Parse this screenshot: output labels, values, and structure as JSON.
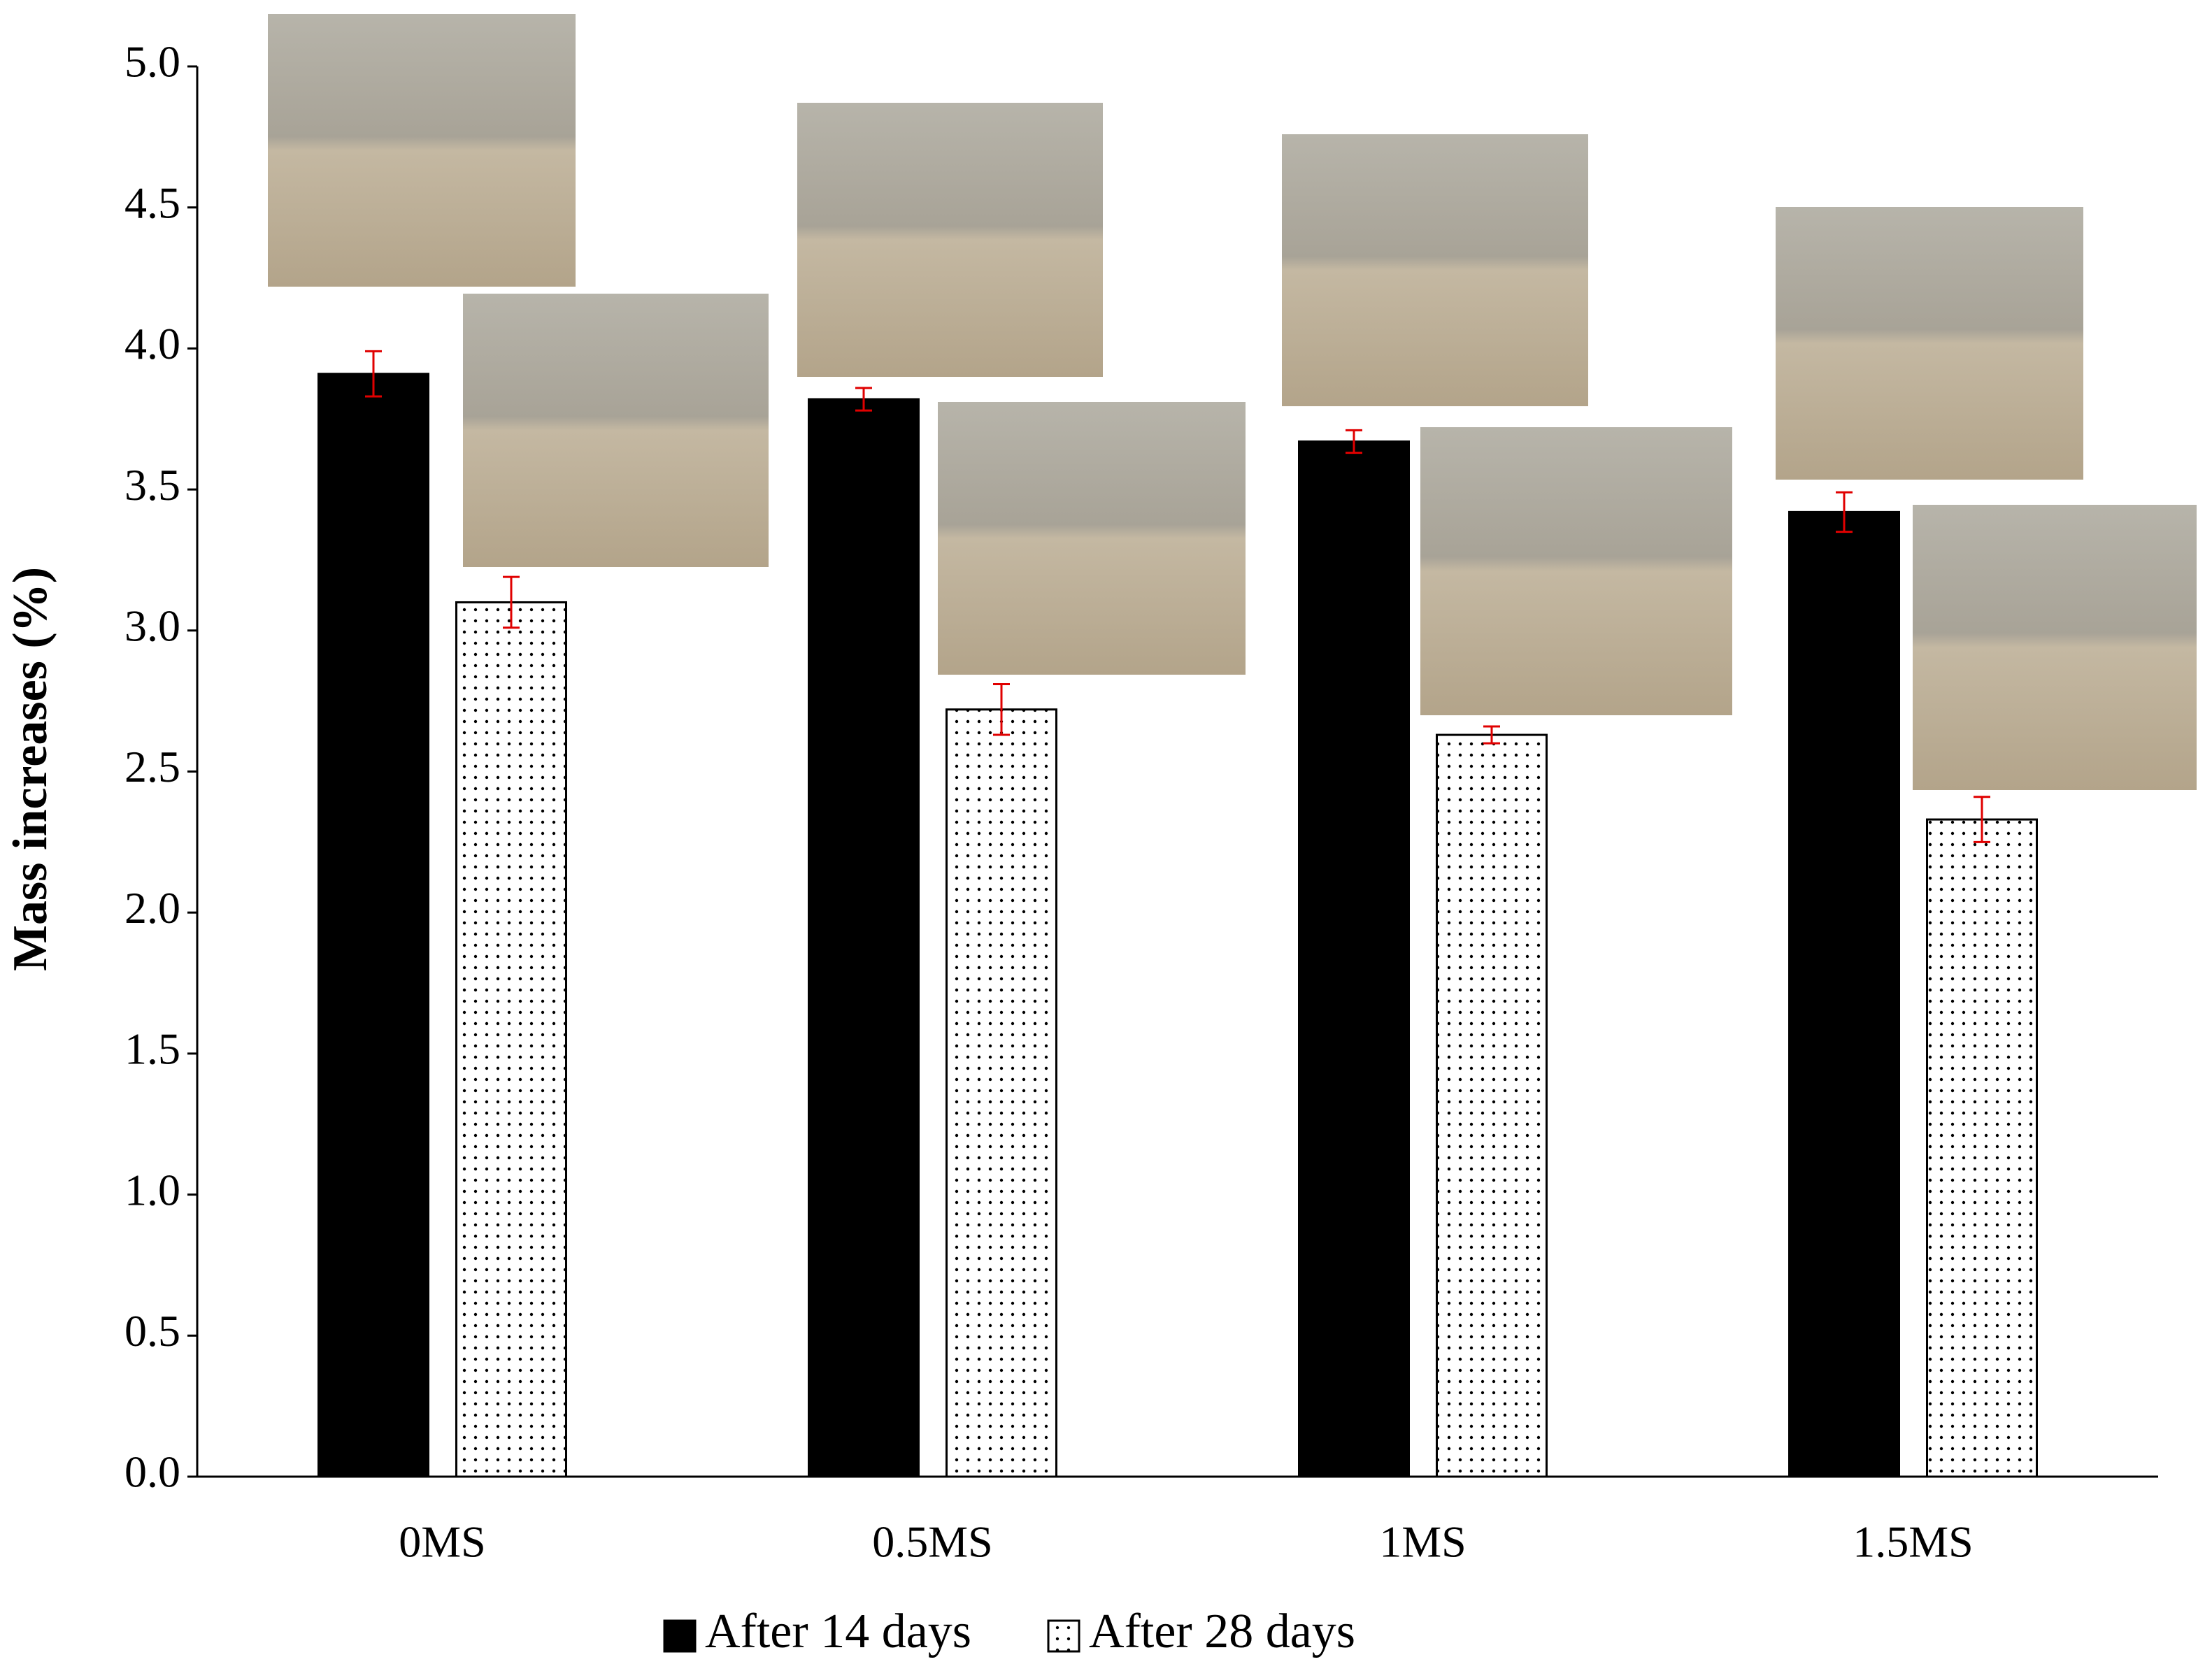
{
  "chart_data": {
    "type": "bar",
    "ylabel": "Mass increases (%)",
    "categories": [
      "0MS",
      "0.5MS",
      "1MS",
      "1.5MS"
    ],
    "series": [
      {
        "name": "After 14 days",
        "color": "#000000",
        "pattern": "solid",
        "values": [
          3.91,
          3.82,
          3.67,
          3.42
        ],
        "errors": [
          0.08,
          0.04,
          0.04,
          0.07
        ]
      },
      {
        "name": "After 28 days",
        "color": "#ffffff",
        "pattern": "dots",
        "values": [
          3.1,
          2.72,
          2.63,
          2.33
        ],
        "errors": [
          0.09,
          0.09,
          0.03,
          0.08
        ]
      }
    ],
    "error_color": "#e00000",
    "ylim": [
      0,
      5
    ],
    "yticks": [
      {
        "value": 0,
        "label": "0.0"
      },
      {
        "value": 0.5,
        "label": "0.5"
      },
      {
        "value": 1,
        "label": "1.0"
      },
      {
        "value": 1.5,
        "label": "1.5"
      },
      {
        "value": 2,
        "label": "2.0"
      },
      {
        "value": 2.5,
        "label": "2.5"
      },
      {
        "value": 3,
        "label": "3.0"
      },
      {
        "value": 3.5,
        "label": "3.5"
      },
      {
        "value": 4,
        "label": "4.0"
      },
      {
        "value": 4.5,
        "label": "4.5"
      },
      {
        "value": 5,
        "label": "5.0"
      }
    ],
    "grid": false,
    "legend": "bottom"
  }
}
